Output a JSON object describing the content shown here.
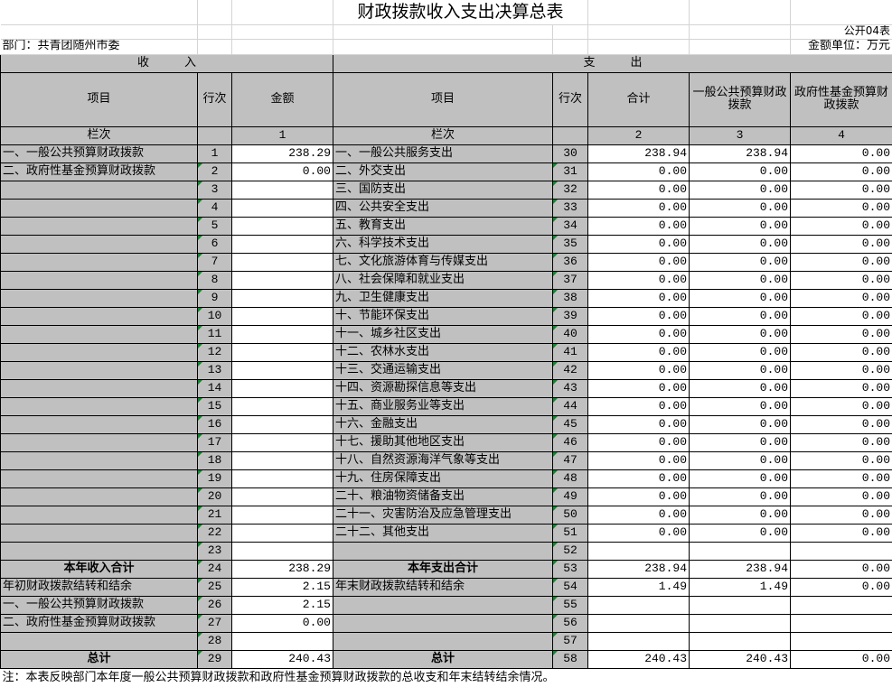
{
  "title": "财政拨款收入支出决算总表",
  "form_no": "公开04表",
  "department": "部门：共青团随州市委",
  "unit": "金额单位：万元",
  "headers": {
    "income": "收　　　入",
    "expense": "支　　　出",
    "item": "项目",
    "line": "行次",
    "amount": "金额",
    "total": "合计",
    "general": "一般公共预算财政拨款",
    "fund": "政府性基金预算财政拨款",
    "col_label": "栏次",
    "col1": "1",
    "col2": "2",
    "col3": "3",
    "col4": "4"
  },
  "rows": [
    {
      "in_item": "一、一般公共预算财政拨款",
      "in_line": "1",
      "in_amt": "238.29",
      "ex_item": "一、一般公共服务支出",
      "ex_line": "30",
      "total": "238.94",
      "general": "238.94",
      "fund": "0.00"
    },
    {
      "in_item": "二、政府性基金预算财政拨款",
      "in_line": "2",
      "in_amt": "0.00",
      "ex_item": "二、外交支出",
      "ex_line": "31",
      "total": "0.00",
      "general": "0.00",
      "fund": "0.00"
    },
    {
      "in_item": "",
      "in_line": "3",
      "in_amt": "",
      "ex_item": "三、国防支出",
      "ex_line": "32",
      "total": "0.00",
      "general": "0.00",
      "fund": "0.00"
    },
    {
      "in_item": "",
      "in_line": "4",
      "in_amt": "",
      "ex_item": "四、公共安全支出",
      "ex_line": "33",
      "total": "0.00",
      "general": "0.00",
      "fund": "0.00"
    },
    {
      "in_item": "",
      "in_line": "5",
      "in_amt": "",
      "ex_item": "五、教育支出",
      "ex_line": "34",
      "total": "0.00",
      "general": "0.00",
      "fund": "0.00"
    },
    {
      "in_item": "",
      "in_line": "6",
      "in_amt": "",
      "ex_item": "六、科学技术支出",
      "ex_line": "35",
      "total": "0.00",
      "general": "0.00",
      "fund": "0.00"
    },
    {
      "in_item": "",
      "in_line": "7",
      "in_amt": "",
      "ex_item": "七、文化旅游体育与传媒支出",
      "ex_line": "36",
      "total": "0.00",
      "general": "0.00",
      "fund": "0.00"
    },
    {
      "in_item": "",
      "in_line": "8",
      "in_amt": "",
      "ex_item": "八、社会保障和就业支出",
      "ex_line": "37",
      "total": "0.00",
      "general": "0.00",
      "fund": "0.00"
    },
    {
      "in_item": "",
      "in_line": "9",
      "in_amt": "",
      "ex_item": "九、卫生健康支出",
      "ex_line": "38",
      "total": "0.00",
      "general": "0.00",
      "fund": "0.00"
    },
    {
      "in_item": "",
      "in_line": "10",
      "in_amt": "",
      "ex_item": "十、节能环保支出",
      "ex_line": "39",
      "total": "0.00",
      "general": "0.00",
      "fund": "0.00"
    },
    {
      "in_item": "",
      "in_line": "11",
      "in_amt": "",
      "ex_item": "十一、城乡社区支出",
      "ex_line": "40",
      "total": "0.00",
      "general": "0.00",
      "fund": "0.00"
    },
    {
      "in_item": "",
      "in_line": "12",
      "in_amt": "",
      "ex_item": "十二、农林水支出",
      "ex_line": "41",
      "total": "0.00",
      "general": "0.00",
      "fund": "0.00"
    },
    {
      "in_item": "",
      "in_line": "13",
      "in_amt": "",
      "ex_item": "十三、交通运输支出",
      "ex_line": "42",
      "total": "0.00",
      "general": "0.00",
      "fund": "0.00"
    },
    {
      "in_item": "",
      "in_line": "14",
      "in_amt": "",
      "ex_item": "十四、资源勘探信息等支出",
      "ex_line": "43",
      "total": "0.00",
      "general": "0.00",
      "fund": "0.00"
    },
    {
      "in_item": "",
      "in_line": "15",
      "in_amt": "",
      "ex_item": "十五、商业服务业等支出",
      "ex_line": "44",
      "total": "0.00",
      "general": "0.00",
      "fund": "0.00"
    },
    {
      "in_item": "",
      "in_line": "16",
      "in_amt": "",
      "ex_item": "十六、金融支出",
      "ex_line": "45",
      "total": "0.00",
      "general": "0.00",
      "fund": "0.00"
    },
    {
      "in_item": "",
      "in_line": "17",
      "in_amt": "",
      "ex_item": "十七、援助其他地区支出",
      "ex_line": "46",
      "total": "0.00",
      "general": "0.00",
      "fund": "0.00"
    },
    {
      "in_item": "",
      "in_line": "18",
      "in_amt": "",
      "ex_item": "十八、自然资源海洋气象等支出",
      "ex_line": "47",
      "total": "0.00",
      "general": "0.00",
      "fund": "0.00"
    },
    {
      "in_item": "",
      "in_line": "19",
      "in_amt": "",
      "ex_item": "十九、住房保障支出",
      "ex_line": "48",
      "total": "0.00",
      "general": "0.00",
      "fund": "0.00"
    },
    {
      "in_item": "",
      "in_line": "20",
      "in_amt": "",
      "ex_item": "二十、粮油物资储备支出",
      "ex_line": "49",
      "total": "0.00",
      "general": "0.00",
      "fund": "0.00"
    },
    {
      "in_item": "",
      "in_line": "21",
      "in_amt": "",
      "ex_item": "二十一、灾害防治及应急管理支出",
      "ex_line": "50",
      "total": "0.00",
      "general": "0.00",
      "fund": "0.00"
    },
    {
      "in_item": "",
      "in_line": "22",
      "in_amt": "",
      "ex_item": "二十二、其他支出",
      "ex_line": "51",
      "total": "0.00",
      "general": "0.00",
      "fund": "0.00"
    },
    {
      "in_item": "",
      "in_line": "23",
      "in_amt": "",
      "ex_item": "",
      "ex_line": "52",
      "total": "",
      "general": "",
      "fund": ""
    },
    {
      "in_item": "本年收入合计",
      "in_line": "24",
      "in_amt": "238.29",
      "ex_item": "本年支出合计",
      "ex_line": "53",
      "total": "238.94",
      "general": "238.94",
      "fund": "0.00",
      "bold": true
    },
    {
      "in_item": "年初财政拨款结转和结余",
      "in_line": "25",
      "in_amt": "2.15",
      "ex_item": "年末财政拨款结转和结余",
      "ex_line": "54",
      "total": "1.49",
      "general": "1.49",
      "fund": "0.00"
    },
    {
      "in_item": "一、一般公共预算财政拨款",
      "in_line": "26",
      "in_amt": "2.15",
      "ex_item": "",
      "ex_line": "55",
      "total": "",
      "general": "",
      "fund": ""
    },
    {
      "in_item": "二、政府性基金预算财政拨款",
      "in_line": "27",
      "in_amt": "0.00",
      "ex_item": "",
      "ex_line": "56",
      "total": "",
      "general": "",
      "fund": ""
    },
    {
      "in_item": "",
      "in_line": "28",
      "in_amt": "",
      "ex_item": "",
      "ex_line": "57",
      "total": "",
      "general": "",
      "fund": ""
    },
    {
      "in_item": "总计",
      "in_line": "29",
      "in_amt": "240.43",
      "ex_item": "总计",
      "ex_line": "58",
      "total": "240.43",
      "general": "240.43",
      "fund": "0.00",
      "bold": true
    }
  ],
  "note": "注：本表反映部门本年度一般公共预算财政拨款和政府性基金预算财政拨款的总收支和年末结转结余情况。"
}
